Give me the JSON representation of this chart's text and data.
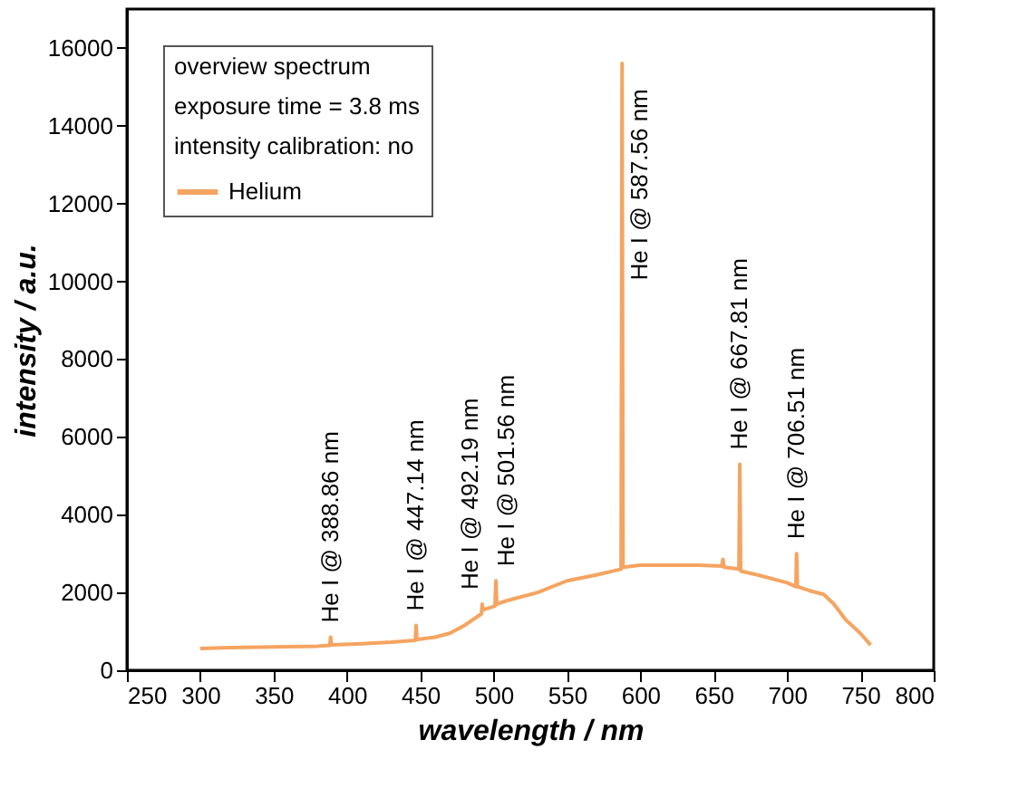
{
  "chart_data": {
    "type": "line",
    "xlabel": "wavelength / nm",
    "ylabel": "intensity / a.u.",
    "legend_title": "overview spectrum\nexposure time = 3.8 ms\nintensity calibration: no",
    "legend": "top left",
    "grid": false,
    "xlim": [
      250,
      800
    ],
    "ylim": [
      0,
      17000
    ],
    "xticks": [
      250,
      300,
      350,
      400,
      450,
      500,
      550,
      600,
      650,
      700,
      750,
      800
    ],
    "yticks": [
      0,
      2000,
      4000,
      6000,
      8000,
      10000,
      12000,
      14000,
      16000
    ],
    "series": [
      {
        "name": "Helium",
        "color": "#f5a461",
        "x": [
          300,
          320,
          350,
          380,
          388.3,
          388.86,
          389.4,
          410,
          430,
          446.6,
          447.14,
          447.7,
          460,
          470,
          480,
          491.7,
          492.19,
          492.7,
          500.9,
          501.56,
          502.1,
          510,
          530,
          550,
          570,
          586.9,
          587.56,
          588.2,
          600,
          620,
          640,
          655.5,
          656.3,
          657.1,
          667.2,
          667.81,
          668.4,
          680,
          700,
          706,
          706.51,
          707.1,
          715,
          725,
          732,
          740,
          750,
          757
        ],
        "values": [
          560,
          580,
          600,
          620,
          640,
          850,
          650,
          680,
          720,
          770,
          1150,
          790,
          850,
          950,
          1150,
          1450,
          1700,
          1550,
          1650,
          2300,
          1700,
          1800,
          2000,
          2300,
          2450,
          2600,
          15600,
          2650,
          2700,
          2700,
          2700,
          2680,
          2850,
          2650,
          2600,
          5300,
          2550,
          2450,
          2250,
          2150,
          3000,
          2150,
          2050,
          1950,
          1700,
          1300,
          950,
          650
        ]
      }
    ],
    "annotations": [
      {
        "text": "He I @ 388.86 nm",
        "x": 388.86,
        "y": 850
      },
      {
        "text": "He I @ 447.14 nm",
        "x": 447.14,
        "y": 1150
      },
      {
        "text": "He I @ 492.19 nm",
        "x": 492.19,
        "y": 1700
      },
      {
        "text": "He I @ 501.56 nm",
        "x": 501.56,
        "y": 2300
      },
      {
        "text": "He I @ 587.56 nm",
        "x": 587.56,
        "y": 9650
      },
      {
        "text": "He I @ 667.81 nm",
        "x": 667.81,
        "y": 5300
      },
      {
        "text": "He I @ 706.51 nm",
        "x": 706.51,
        "y": 3000
      }
    ]
  }
}
